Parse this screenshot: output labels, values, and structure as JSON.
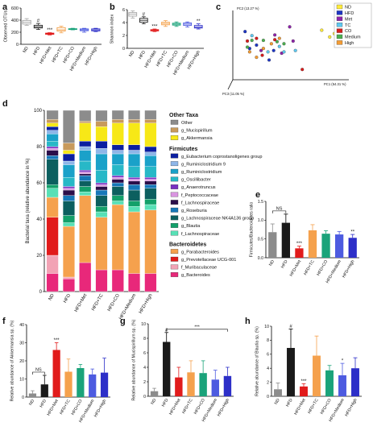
{
  "chart_data": [
    {
      "panel": "a",
      "type": "box",
      "ylabel": "Observed OTUs",
      "ylim": [
        0,
        600
      ],
      "yticks": [
        0,
        200,
        400,
        600
      ],
      "categories": [
        "ND",
        "HFD",
        "HFD+Met",
        "HFD+TC",
        "HFD+CO",
        "HFD+Medium",
        "HFD+High"
      ],
      "boxes": [
        {
          "min": 315,
          "q1": 335,
          "median": 365,
          "q3": 395,
          "max": 425,
          "color": "#a6a6a6"
        },
        {
          "min": 245,
          "q1": 270,
          "median": 290,
          "q3": 315,
          "max": 345,
          "color": "#222222"
        },
        {
          "min": 155,
          "q1": 165,
          "median": 175,
          "q3": 185,
          "max": 192,
          "color": "#e11b1b"
        },
        {
          "min": 190,
          "q1": 220,
          "median": 240,
          "q3": 275,
          "max": 300,
          "color": "#f4a14a"
        },
        {
          "min": 240,
          "q1": 245,
          "median": 250,
          "q3": 258,
          "max": 265,
          "color": "#1aa37a"
        },
        {
          "min": 200,
          "q1": 225,
          "median": 240,
          "q3": 255,
          "max": 265,
          "color": "#4d5be0"
        },
        {
          "min": 210,
          "q1": 222,
          "median": 238,
          "q3": 255,
          "max": 265,
          "color": "#2d2fc8"
        }
      ],
      "annotations": [
        {
          "category": "HFD",
          "text": "#"
        },
        {
          "category": "HFD+Met",
          "text": "***"
        }
      ]
    },
    {
      "panel": "b",
      "type": "box",
      "ylabel": "Shannon index",
      "ylim": [
        0,
        6
      ],
      "yticks": [
        0,
        2,
        4,
        6
      ],
      "categories": [
        "ND",
        "HFD",
        "HFD+Met",
        "HFD+TC",
        "HFD+CO",
        "HFD+Medium",
        "HFD+High"
      ],
      "boxes": [
        {
          "min": 4.7,
          "q1": 5.0,
          "median": 5.3,
          "q3": 5.55,
          "max": 5.8,
          "color": "#a6a6a6"
        },
        {
          "min": 3.8,
          "q1": 4.05,
          "median": 4.35,
          "q3": 4.65,
          "max": 4.9,
          "color": "#222222"
        },
        {
          "min": 2.6,
          "q1": 2.7,
          "median": 2.8,
          "q3": 2.9,
          "max": 3.0,
          "color": "#e11b1b"
        },
        {
          "min": 3.4,
          "q1": 3.65,
          "median": 3.85,
          "q3": 4.05,
          "max": 4.3,
          "color": "#f4a14a"
        },
        {
          "min": 3.4,
          "q1": 3.6,
          "median": 3.75,
          "q3": 3.9,
          "max": 4.1,
          "color": "#1aa37a"
        },
        {
          "min": 3.3,
          "q1": 3.55,
          "median": 3.75,
          "q3": 3.95,
          "max": 4.1,
          "color": "#4d5be0"
        },
        {
          "min": 3.0,
          "q1": 3.15,
          "median": 3.3,
          "q3": 3.55,
          "max": 3.8,
          "color": "#2d2fc8"
        }
      ],
      "annotations": [
        {
          "category": "HFD",
          "text": "#"
        },
        {
          "category": "HFD+Met",
          "text": "***"
        },
        {
          "category": "HFD+High",
          "text": "**"
        }
      ]
    },
    {
      "panel": "c",
      "type": "scatter3d",
      "axis_labels": {
        "pc1": "PC1 (54.31 %)",
        "pc2": "PC2 (13.27 %)",
        "pc3": "PC3 (11.05 %)"
      },
      "legend": [
        "ND",
        "HFD",
        "Met",
        "TC",
        "CO",
        "Medium",
        "High"
      ],
      "legend_colors": [
        "#ffeb3b",
        "#1d35c4",
        "#8e24aa",
        "#5ec8f0",
        "#d81b1b",
        "#4caf50",
        "#f39c34"
      ],
      "points": [
        {
          "g": 0,
          "x": 0.88,
          "y": 0.33
        },
        {
          "g": 0,
          "x": 0.84,
          "y": 0.38
        },
        {
          "g": 0,
          "x": 0.77,
          "y": 0.28
        },
        {
          "g": 0,
          "x": 0.92,
          "y": 0.31
        },
        {
          "g": 0,
          "x": 0.93,
          "y": 0.38
        },
        {
          "g": 1,
          "x": 0.14,
          "y": 0.55
        },
        {
          "g": 1,
          "x": 0.2,
          "y": 0.5
        },
        {
          "g": 1,
          "x": 0.31,
          "y": 0.72
        },
        {
          "g": 1,
          "x": 0.35,
          "y": 0.58
        },
        {
          "g": 1,
          "x": 0.1,
          "y": 0.3
        },
        {
          "g": 2,
          "x": 0.42,
          "y": 0.62
        },
        {
          "g": 2,
          "x": 0.52,
          "y": 0.44
        },
        {
          "g": 2,
          "x": 0.49,
          "y": 0.23
        },
        {
          "g": 2,
          "x": 0.36,
          "y": 0.35
        },
        {
          "g": 2,
          "x": 0.24,
          "y": 0.58
        },
        {
          "g": 3,
          "x": 0.3,
          "y": 0.6
        },
        {
          "g": 3,
          "x": 0.16,
          "y": 0.36
        },
        {
          "g": 3,
          "x": 0.4,
          "y": 0.52
        },
        {
          "g": 3,
          "x": 0.44,
          "y": 0.6
        },
        {
          "g": 3,
          "x": 0.54,
          "y": 0.58
        },
        {
          "g": 4,
          "x": 0.6,
          "y": 0.86
        },
        {
          "g": 4,
          "x": 0.36,
          "y": 0.42
        },
        {
          "g": 4,
          "x": 0.2,
          "y": 0.4
        },
        {
          "g": 4,
          "x": 0.12,
          "y": 0.44
        },
        {
          "g": 4,
          "x": 0.25,
          "y": 0.65
        },
        {
          "g": 5,
          "x": 0.16,
          "y": 0.43
        },
        {
          "g": 5,
          "x": 0.26,
          "y": 0.43
        },
        {
          "g": 5,
          "x": 0.38,
          "y": 0.45
        },
        {
          "g": 5,
          "x": 0.12,
          "y": 0.53
        },
        {
          "g": 5,
          "x": 0.44,
          "y": 0.48
        },
        {
          "g": 6,
          "x": 0.14,
          "y": 0.6
        },
        {
          "g": 6,
          "x": 0.2,
          "y": 0.68
        },
        {
          "g": 6,
          "x": 0.33,
          "y": 0.48
        },
        {
          "g": 6,
          "x": 0.26,
          "y": 0.55
        },
        {
          "g": 6,
          "x": 0.4,
          "y": 0.4
        }
      ]
    },
    {
      "panel": "d",
      "type": "stacked_bar",
      "ylabel": "Bacterial taxa (relative abundance in %)",
      "ylim": [
        0,
        100
      ],
      "yticks": [
        0,
        20,
        40,
        60,
        80,
        100
      ],
      "categories": [
        "ND",
        "HFD",
        "HFD+Met",
        "HFD+TC",
        "HFD+CO",
        "HFD+Medium",
        "HFD+High"
      ],
      "legend_groups": [
        {
          "title": "Other Taxa",
          "items": [
            {
              "name": "Other",
              "color": "#8c8c8c"
            },
            {
              "name": "g_Mucispirillum",
              "color": "#c89a5c"
            },
            {
              "name": "g_Akkermansia",
              "color": "#f7e817"
            }
          ]
        },
        {
          "title": "Firmicutes",
          "items": [
            {
              "name": "g_Eubacterium coprostanoligenes group",
              "color": "#0b1fa0"
            },
            {
              "name": "g_Ruminiclostridium 9",
              "color": "#8eb6e8"
            },
            {
              "name": "g_Ruminiclostridium",
              "color": "#1aa1c9"
            },
            {
              "name": "g_Oscillibacter",
              "color": "#27b8c7"
            },
            {
              "name": "g_Anaerotruncus",
              "color": "#7a2fc2"
            },
            {
              "name": "f_Peptococcaceae",
              "color": "#d995e0"
            },
            {
              "name": "f_Lachnospiraceae",
              "color": "#2b0f4a"
            },
            {
              "name": "g_Roseburia",
              "color": "#1677b8"
            },
            {
              "name": "g_Lachnospiraceae NK4A136 group",
              "color": "#0c5f5f"
            },
            {
              "name": "g_Blautia",
              "color": "#13a06a"
            },
            {
              "name": "f_Lachnospiraceae",
              "color": "#58e0b6"
            }
          ]
        },
        {
          "title": "Bacteroidetes",
          "items": [
            {
              "name": "g_Parabacteroides",
              "color": "#f5a14d"
            },
            {
              "name": "g_Prevotellaceae UCG-001",
              "color": "#e11b1b"
            },
            {
              "name": "f_Muribaculaceae",
              "color": "#f2a3b5"
            },
            {
              "name": "g_Bacteroides",
              "color": "#e8287a"
            }
          ]
        }
      ],
      "stack_order": [
        "g_Bacteroides",
        "f_Muribaculaceae",
        "g_Prevotellaceae UCG-001",
        "g_Parabacteroides",
        "f_Lachnospiraceae",
        "g_Blautia",
        "g_Lachnospiraceae NK4A136 group",
        "g_Roseburia",
        "f_Lachnospiraceae",
        "f_Peptococcaceae",
        "g_Anaerotruncus",
        "g_Oscillibacter",
        "g_Ruminiclostridium",
        "g_Ruminiclostridium 9",
        "g_Eubacterium coprostanoligenes group",
        "g_Akkermansia",
        "g_Mucispirillum",
        "Other"
      ],
      "stack_colors": [
        "#e8287a",
        "#f2a3b5",
        "#e11b1b",
        "#f5a14d",
        "#58e0b6",
        "#13a06a",
        "#0c5f5f",
        "#1677b8",
        "#2b0f4a",
        "#d995e0",
        "#7a2fc2",
        "#27b8c7",
        "#1aa1c9",
        "#8eb6e8",
        "#0b1fa0",
        "#f7e817",
        "#c89a5c",
        "#8c8c8c"
      ],
      "values": [
        [
          10,
          10,
          21,
          11,
          5,
          2,
          14,
          2,
          3,
          1,
          1,
          3,
          4,
          2,
          2,
          2,
          2,
          5
        ],
        [
          7,
          1,
          0,
          28,
          2,
          4,
          8,
          3,
          3,
          1,
          1,
          5,
          7,
          2,
          4,
          2,
          4,
          18
        ],
        [
          16,
          0,
          0,
          37,
          2,
          3,
          3,
          3,
          1,
          1,
          1,
          5,
          6,
          2,
          3,
          10,
          1,
          6
        ],
        [
          12,
          0,
          0,
          29,
          3,
          3,
          6,
          3,
          2,
          1,
          1,
          7,
          9,
          3,
          4,
          8,
          3,
          6
        ],
        [
          12,
          0,
          0,
          36,
          2,
          3,
          5,
          2,
          2,
          1,
          1,
          6,
          6,
          2,
          3,
          12,
          2,
          5
        ],
        [
          10,
          0,
          0,
          34,
          3,
          3,
          6,
          3,
          2,
          1,
          1,
          6,
          7,
          2,
          3,
          12,
          2,
          5
        ],
        [
          10,
          0,
          0,
          35,
          3,
          3,
          6,
          2,
          2,
          1,
          1,
          6,
          6,
          2,
          3,
          13,
          2,
          5
        ]
      ]
    },
    {
      "panel": "e",
      "type": "bar",
      "ylabel": "Firmicutes/Bacteroidetes ratio",
      "ylim": [
        0,
        1.5
      ],
      "yticks": [
        0.0,
        0.5,
        1.0,
        1.5
      ],
      "categories": [
        "ND",
        "HFD",
        "HFD+Met",
        "HFD+TC",
        "HFD+CO",
        "HFD+Medium",
        "HFD+High"
      ],
      "values": [
        0.68,
        0.93,
        0.25,
        0.73,
        0.64,
        0.62,
        0.53
      ],
      "errors": [
        0.22,
        0.23,
        0.06,
        0.15,
        0.08,
        0.08,
        0.09
      ],
      "colors": [
        "#8c8c8c",
        "#1a1a1a",
        "#e11b1b",
        "#f5a14d",
        "#1aa37a",
        "#4d5be0",
        "#2d2fc8"
      ],
      "annotations": [
        {
          "category": "HFD+Met",
          "text": "***"
        },
        {
          "category": "HFD+High",
          "text": "**"
        }
      ],
      "brackets": [
        {
          "from": "ND",
          "to": "HFD",
          "text": "NS"
        }
      ]
    },
    {
      "panel": "f",
      "type": "bar",
      "ylabel": "Relative abundance of Akkermansia sp. (%)",
      "ylim": [
        0,
        40
      ],
      "yticks": [
        0,
        10,
        20,
        30,
        40
      ],
      "categories": [
        "ND",
        "HFD",
        "HFD+Met",
        "HFD+TC",
        "HFD+CO",
        "HFD+Medium",
        "HFD+High"
      ],
      "values": [
        2,
        7,
        26,
        14,
        16,
        12.5,
        13.5
      ],
      "errors": [
        1.5,
        5,
        4,
        7,
        2,
        3,
        8
      ],
      "colors": [
        "#8c8c8c",
        "#1a1a1a",
        "#e11b1b",
        "#f5a14d",
        "#1aa37a",
        "#4d5be0",
        "#2d2fc8"
      ],
      "annotations": [
        {
          "category": "HFD+Met",
          "text": "***"
        }
      ],
      "brackets": [
        {
          "from": "ND",
          "to": "HFD",
          "text": "NS"
        }
      ]
    },
    {
      "panel": "g",
      "type": "bar",
      "ylabel": "Relative abundance of Mucispirillum sp. (%)",
      "ylim": [
        0,
        10
      ],
      "yticks": [
        0,
        2,
        4,
        6,
        8,
        10
      ],
      "categories": [
        "ND",
        "HFD",
        "HFD+Met",
        "HFD+TC",
        "HFD+CO",
        "HFD+Medium",
        "HFD+High"
      ],
      "values": [
        0.7,
        7.5,
        2.6,
        3.3,
        3.2,
        2.3,
        2.8
      ],
      "errors": [
        0.4,
        1.3,
        1.4,
        1.6,
        1.7,
        1.3,
        1.2
      ],
      "colors": [
        "#8c8c8c",
        "#1a1a1a",
        "#e11b1b",
        "#f5a14d",
        "#1aa37a",
        "#4d5be0",
        "#2d2fc8"
      ],
      "annotations": [
        {
          "category": "HFD",
          "text": "#"
        }
      ],
      "brackets": [
        {
          "from": "HFD",
          "to": "HFD+High",
          "text": "***"
        }
      ]
    },
    {
      "panel": "h",
      "type": "bar",
      "ylabel": "Relative abundance of Blautia sp. (%)",
      "ylim": [
        0,
        10
      ],
      "yticks": [
        0,
        2,
        4,
        6,
        8,
        10
      ],
      "categories": [
        "ND",
        "HFD",
        "HFD+Met",
        "HFD+TC",
        "HFD+CO",
        "HFD+Medium",
        "HFD+High"
      ],
      "values": [
        1,
        6.9,
        1.4,
        5.8,
        3.7,
        3.0,
        4.0
      ],
      "errors": [
        0.9,
        2.7,
        0.4,
        2.8,
        0.7,
        1.7,
        1.5
      ],
      "colors": [
        "#8c8c8c",
        "#1a1a1a",
        "#e11b1b",
        "#f5a14d",
        "#1aa37a",
        "#4d5be0",
        "#2d2fc8"
      ],
      "annotations": [
        {
          "category": "HFD",
          "text": "#"
        },
        {
          "category": "HFD+Met",
          "text": "***"
        },
        {
          "category": "HFD+Medium",
          "text": "*"
        }
      ]
    }
  ]
}
